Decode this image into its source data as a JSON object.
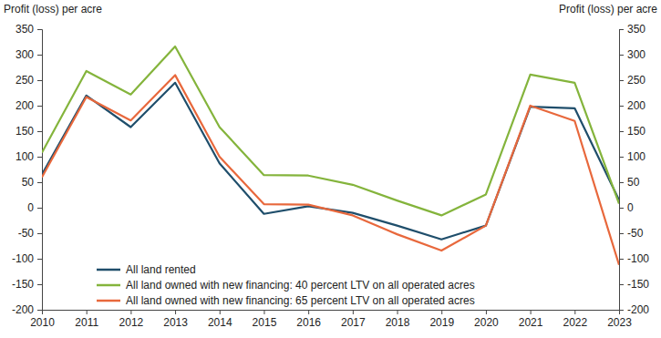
{
  "chart_data": {
    "type": "line",
    "ylabel": "Profit (loss) per acre",
    "y2label": "Profit (loss) per acre",
    "x": [
      2010,
      2011,
      2012,
      2013,
      2014,
      2015,
      2016,
      2017,
      2018,
      2019,
      2020,
      2021,
      2022,
      2023
    ],
    "xlim": [
      2010,
      2023
    ],
    "xticks": [
      2010,
      2011,
      2012,
      2013,
      2014,
      2015,
      2016,
      2017,
      2018,
      2019,
      2020,
      2021,
      2022,
      2023
    ],
    "ylim": [
      -200,
      350
    ],
    "yticks": [
      -200,
      -150,
      -100,
      -50,
      0,
      50,
      100,
      150,
      200,
      250,
      300,
      350
    ],
    "y2lim": [
      -200,
      350
    ],
    "y2ticks": [
      -200,
      -150,
      -100,
      -50,
      0,
      50,
      100,
      150,
      200,
      250,
      300,
      350
    ],
    "grid": false,
    "legend": "lower left",
    "series": [
      {
        "name": "All land rented",
        "color": "#1f4e6b",
        "values": [
          65,
          220,
          158,
          245,
          87,
          -12,
          3,
          -10,
          -35,
          -62,
          -35,
          198,
          195,
          15
        ]
      },
      {
        "name": "All land owned with new financing: 40 percent LTV on all operated acres",
        "color": "#84b43c",
        "values": [
          108,
          268,
          222,
          316,
          158,
          64,
          63,
          45,
          14,
          -15,
          26,
          261,
          245,
          8
        ]
      },
      {
        "name": "All land owned with new financing: 65 percent LTV on all operated acres",
        "color": "#e8683c",
        "values": [
          60,
          217,
          171,
          260,
          100,
          7,
          6,
          -15,
          -52,
          -84,
          -35,
          200,
          170,
          -112
        ]
      }
    ]
  }
}
